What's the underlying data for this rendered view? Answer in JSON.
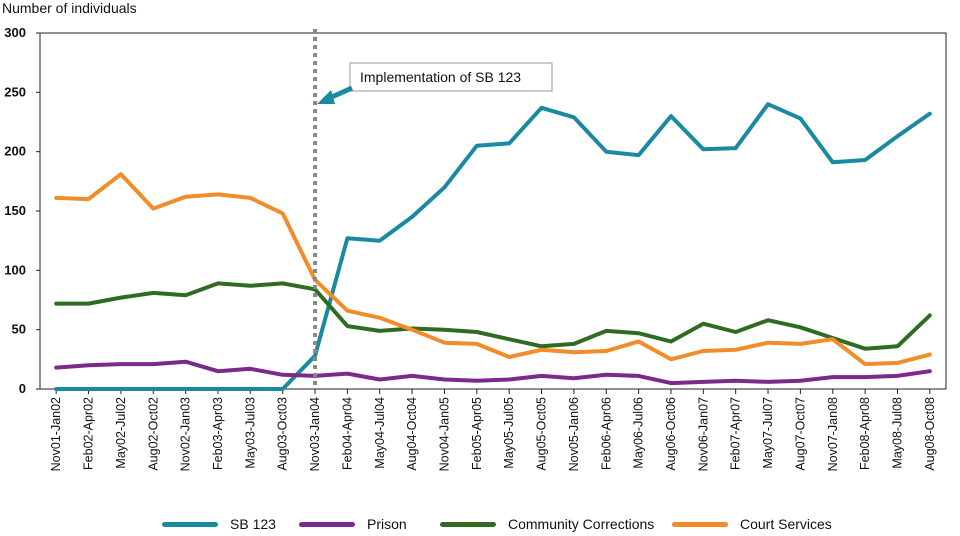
{
  "chart_data": {
    "type": "line",
    "ylabel": "Number of individuals",
    "xlabel": "",
    "ylim": [
      0,
      300
    ],
    "yticks": [
      0,
      50,
      100,
      150,
      200,
      250,
      300
    ],
    "grid": false,
    "legend_position": "bottom",
    "categories": [
      "Nov01-Jan02",
      "Feb02-Apr02",
      "May02-Jul02",
      "Aug02-Oct02",
      "Nov02-Jan03",
      "Feb03-Apr03",
      "May03-Jul03",
      "Aug03-Oct03",
      "Nov03-Jan04",
      "Feb04-Apr04",
      "May04-Jul04",
      "Aug04-Oct04",
      "Nov04-Jan05",
      "Feb05-Apr05",
      "May05-Jul05",
      "Aug05-Oct05",
      "Nov05-Jan06",
      "Feb06-Apr06",
      "May06-Jul06",
      "Aug06-Oct06",
      "Nov06-Jan07",
      "Feb07-Apr07",
      "May07-Jul07",
      "Aug07-Oct07",
      "Nov07-Jan08",
      "Feb08-Apr08",
      "May08-Jul08",
      "Aug08-Oct08"
    ],
    "series": [
      {
        "name": "SB 123",
        "color": "#1a8aa0",
        "values": [
          0,
          0,
          0,
          0,
          0,
          0,
          0,
          0,
          28,
          127,
          125,
          145,
          170,
          205,
          207,
          237,
          229,
          200,
          197,
          230,
          202,
          203,
          240,
          228,
          191,
          193,
          213,
          232
        ]
      },
      {
        "name": "Prison",
        "color": "#7b2a8c",
        "values": [
          18,
          20,
          21,
          21,
          23,
          15,
          17,
          12,
          11,
          13,
          8,
          11,
          8,
          7,
          8,
          11,
          9,
          12,
          11,
          5,
          6,
          7,
          6,
          7,
          10,
          10,
          11,
          15
        ]
      },
      {
        "name": "Community Corrections",
        "color": "#2f6b22",
        "values": [
          72,
          72,
          77,
          81,
          79,
          89,
          87,
          89,
          84,
          53,
          49,
          51,
          50,
          48,
          42,
          36,
          38,
          49,
          47,
          40,
          55,
          48,
          58,
          52,
          43,
          34,
          36,
          62
        ]
      },
      {
        "name": "Court Services",
        "color": "#f28c28",
        "values": [
          161,
          160,
          181,
          152,
          162,
          164,
          161,
          148,
          92,
          66,
          60,
          50,
          39,
          38,
          27,
          33,
          31,
          32,
          40,
          25,
          32,
          33,
          39,
          38,
          42,
          21,
          22,
          29
        ]
      }
    ],
    "annotations": [
      {
        "text": "Implementation of SB 123",
        "category": "Nov03-Jan04"
      }
    ]
  }
}
